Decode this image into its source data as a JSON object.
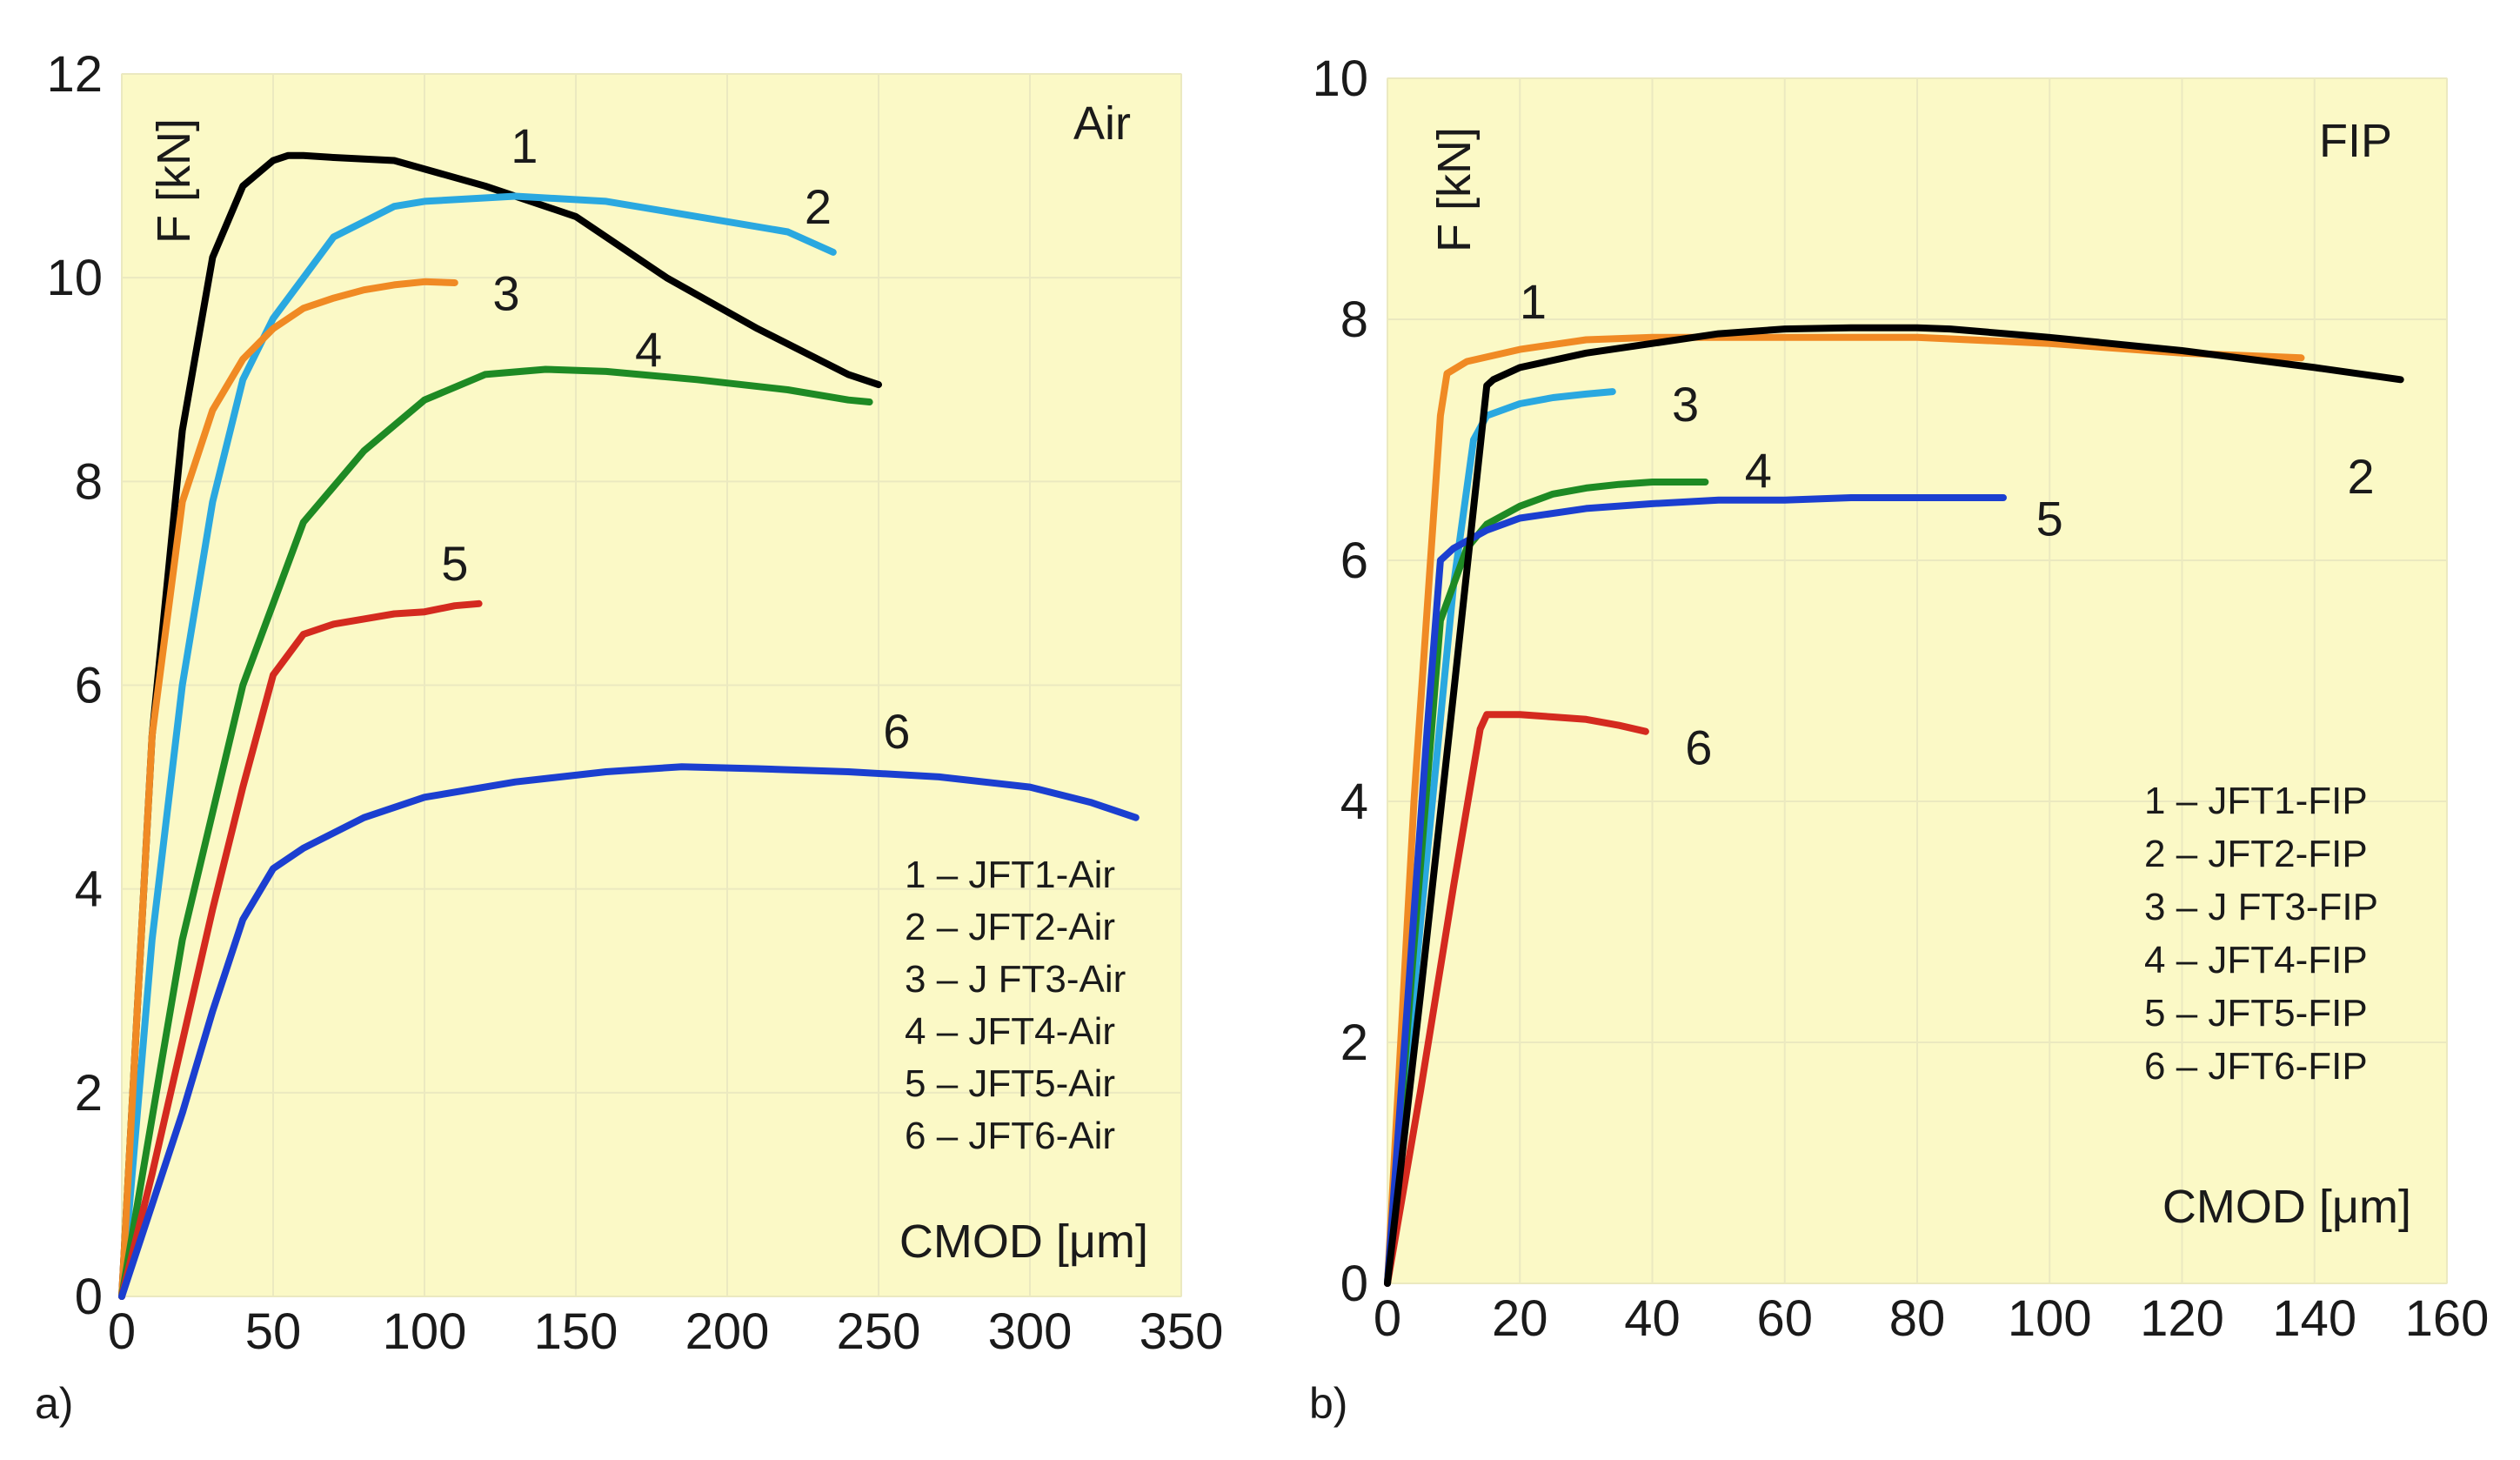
{
  "chart_data": [
    {
      "type": "line",
      "panel_tag": "a)",
      "title": "Air",
      "xlabel": "CMOD [μm]",
      "ylabel": "F [kN]",
      "xlim": [
        0,
        350
      ],
      "ylim": [
        0,
        12
      ],
      "xticks": [
        0,
        50,
        100,
        150,
        200,
        250,
        300,
        350
      ],
      "yticks": [
        0,
        2,
        4,
        6,
        8,
        10,
        12
      ],
      "background": "#fbf9c6",
      "legend_position": "bottom-right",
      "legend": [
        "1 – JFT1-Air",
        "2 – JFT2-Air",
        "3 – J FT3-Air",
        "4 – JFT4-Air",
        "5 – JFT5-Air",
        "6 – JFT6-Air"
      ],
      "series": [
        {
          "name": "1",
          "color": "#000000",
          "x": [
            0,
            10,
            20,
            30,
            40,
            50,
            55,
            60,
            70,
            90,
            120,
            150,
            180,
            210,
            240,
            250
          ],
          "y": [
            0,
            5.5,
            8.5,
            10.2,
            10.9,
            11.15,
            11.2,
            11.2,
            11.18,
            11.15,
            10.9,
            10.6,
            10.0,
            9.5,
            9.05,
            8.95
          ],
          "label": "1",
          "label_at": [
            133,
            11.3
          ]
        },
        {
          "name": "2",
          "color": "#2aa8e0",
          "x": [
            0,
            10,
            20,
            30,
            40,
            50,
            60,
            70,
            80,
            90,
            100,
            130,
            160,
            190,
            220,
            235
          ],
          "y": [
            0,
            3.5,
            6.0,
            7.8,
            9.0,
            9.6,
            10.0,
            10.4,
            10.55,
            10.7,
            10.75,
            10.8,
            10.75,
            10.6,
            10.45,
            10.25
          ],
          "label": "2",
          "label_at": [
            230,
            10.7
          ]
        },
        {
          "name": "3",
          "color": "#f08a24",
          "x": [
            0,
            10,
            20,
            30,
            40,
            50,
            60,
            70,
            80,
            90,
            100,
            110
          ],
          "y": [
            0,
            5.5,
            7.8,
            8.7,
            9.2,
            9.5,
            9.7,
            9.8,
            9.88,
            9.93,
            9.96,
            9.95
          ],
          "label": "3",
          "label_at": [
            127,
            9.85
          ]
        },
        {
          "name": "4",
          "color": "#1e8a24",
          "x": [
            0,
            20,
            40,
            60,
            80,
            100,
            120,
            140,
            160,
            190,
            220,
            240,
            247
          ],
          "y": [
            0,
            3.5,
            6.0,
            7.6,
            8.3,
            8.8,
            9.05,
            9.1,
            9.08,
            9.0,
            8.9,
            8.8,
            8.78
          ],
          "label": "4",
          "label_at": [
            174,
            9.3
          ]
        },
        {
          "name": "5",
          "color": "#d42a1f",
          "x": [
            0,
            10,
            20,
            30,
            40,
            50,
            60,
            70,
            80,
            90,
            100,
            110,
            118
          ],
          "y": [
            0,
            1.2,
            2.5,
            3.8,
            5.0,
            6.1,
            6.5,
            6.6,
            6.65,
            6.7,
            6.72,
            6.78,
            6.8
          ],
          "label": "5",
          "label_at": [
            110,
            7.2
          ]
        },
        {
          "name": "6",
          "color": "#1b3fd0",
          "x": [
            0,
            10,
            20,
            30,
            40,
            50,
            60,
            80,
            100,
            130,
            160,
            185,
            210,
            240,
            270,
            300,
            320,
            335
          ],
          "y": [
            0,
            0.9,
            1.8,
            2.8,
            3.7,
            4.2,
            4.4,
            4.7,
            4.9,
            5.05,
            5.15,
            5.2,
            5.18,
            5.15,
            5.1,
            5.0,
            4.85,
            4.7
          ],
          "label": "6",
          "label_at": [
            256,
            5.55
          ]
        }
      ]
    },
    {
      "type": "line",
      "panel_tag": "b)",
      "title": "FIP",
      "xlabel": "CMOD [μm]",
      "ylabel": "F [kN]",
      "xlim": [
        0,
        160
      ],
      "ylim": [
        0,
        10
      ],
      "xticks": [
        0,
        20,
        40,
        60,
        80,
        100,
        120,
        140,
        160
      ],
      "yticks": [
        0,
        2,
        4,
        6,
        8,
        10
      ],
      "background": "#fbf9c6",
      "legend_position": "bottom-right",
      "legend": [
        "1 – JFT1-FIP",
        "2 – JFT2-FIP",
        "3 – J FT3-FIP",
        "4 – JFT4-FIP",
        "5 – JFT5-FIP",
        "6 – JFT6-FIP"
      ],
      "series": [
        {
          "name": "2",
          "color": "#f08a24",
          "x": [
            0,
            4,
            8,
            9,
            12,
            20,
            30,
            40,
            60,
            80,
            100,
            120,
            138
          ],
          "y": [
            0,
            4.0,
            7.2,
            7.55,
            7.65,
            7.75,
            7.83,
            7.85,
            7.85,
            7.85,
            7.8,
            7.72,
            7.68
          ],
          "label": "2",
          "label_at": [
            147,
            6.7
          ]
        },
        {
          "name": "3",
          "color": "#2aa8e0",
          "x": [
            0,
            5,
            10,
            13,
            15,
            20,
            25,
            30,
            34
          ],
          "y": [
            0,
            3.0,
            5.8,
            7.0,
            7.2,
            7.3,
            7.35,
            7.38,
            7.4
          ],
          "label": "3",
          "label_at": [
            45,
            7.3
          ]
        },
        {
          "name": "4",
          "color": "#1e8a24",
          "x": [
            0,
            4,
            8,
            12,
            15,
            20,
            25,
            30,
            35,
            40,
            48
          ],
          "y": [
            0,
            2.8,
            5.5,
            6.1,
            6.3,
            6.45,
            6.55,
            6.6,
            6.63,
            6.65,
            6.65
          ],
          "label": "4",
          "label_at": [
            56,
            6.75
          ]
        },
        {
          "name": "5",
          "color": "#1b3fd0",
          "x": [
            0,
            3,
            6,
            8,
            10,
            15,
            20,
            30,
            40,
            50,
            60,
            70,
            80,
            93
          ],
          "y": [
            0,
            2.3,
            4.6,
            6.0,
            6.1,
            6.25,
            6.35,
            6.43,
            6.47,
            6.5,
            6.5,
            6.52,
            6.52,
            6.52
          ],
          "label": "5",
          "label_at": [
            100,
            6.35
          ]
        },
        {
          "name": "6",
          "color": "#d42a1f",
          "x": [
            0,
            5,
            10,
            14,
            15,
            20,
            25,
            30,
            35,
            39
          ],
          "y": [
            0,
            1.6,
            3.3,
            4.6,
            4.72,
            4.72,
            4.7,
            4.68,
            4.63,
            4.58
          ],
          "label": "6",
          "label_at": [
            47,
            4.45
          ]
        },
        {
          "name": "1",
          "color": "#000000",
          "x": [
            0,
            5,
            10,
            15,
            16,
            20,
            30,
            40,
            50,
            60,
            70,
            80,
            85,
            100,
            120,
            140,
            153
          ],
          "y": [
            0,
            2.4,
            4.9,
            7.45,
            7.5,
            7.6,
            7.72,
            7.8,
            7.88,
            7.92,
            7.93,
            7.93,
            7.92,
            7.85,
            7.74,
            7.6,
            7.5
          ],
          "label": "1",
          "label_at": [
            22,
            8.15
          ]
        }
      ]
    }
  ]
}
